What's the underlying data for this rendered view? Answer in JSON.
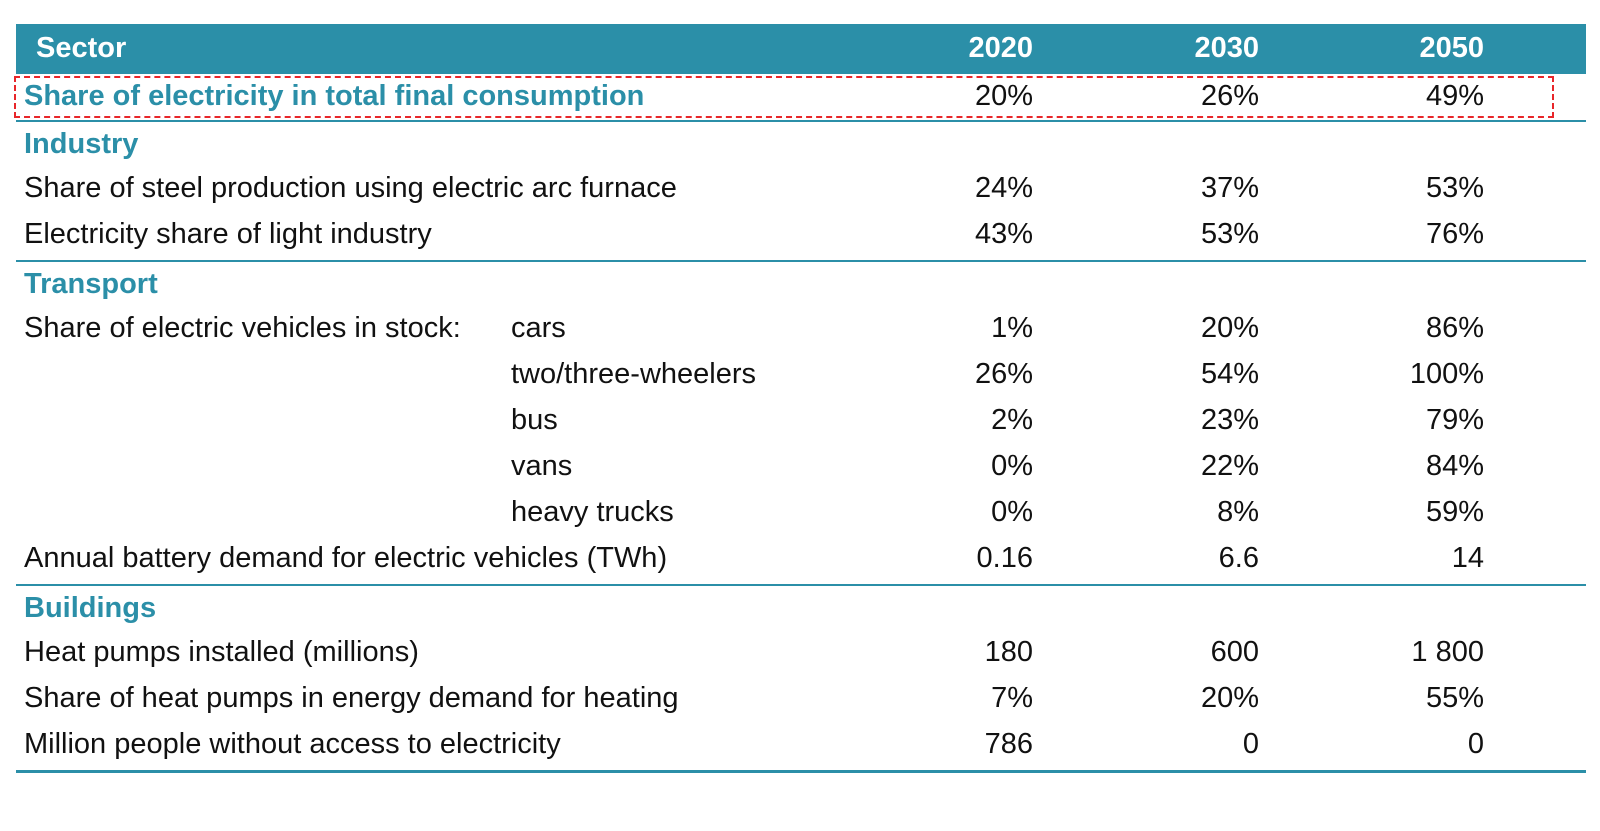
{
  "header": {
    "sector": "Sector",
    "y2020": "2020",
    "y2030": "2030",
    "y2050": "2050"
  },
  "highlight_row": {
    "label": "Share of electricity in total final consumption",
    "v2020": "20%",
    "v2030": "26%",
    "v2050": "49%"
  },
  "industry": {
    "title": "Industry",
    "rows": [
      {
        "label": "Share of steel production using electric arc furnace",
        "v2020": "24%",
        "v2030": "37%",
        "v2050": "53%"
      },
      {
        "label": "Electricity share of light industry",
        "v2020": "43%",
        "v2030": "53%",
        "v2050": "76%"
      }
    ]
  },
  "transport": {
    "title": "Transport",
    "ev_label": "Share of electric vehicles in stock:",
    "ev_rows": [
      {
        "sub": "cars",
        "v2020": "1%",
        "v2030": "20%",
        "v2050": "86%"
      },
      {
        "sub": "two/three-wheelers",
        "v2020": "26%",
        "v2030": "54%",
        "v2050": "100%"
      },
      {
        "sub": "bus",
        "v2020": "2%",
        "v2030": "23%",
        "v2050": "79%"
      },
      {
        "sub": "vans",
        "v2020": "0%",
        "v2030": "22%",
        "v2050": "84%"
      },
      {
        "sub": "heavy trucks",
        "v2020": "0%",
        "v2030": "8%",
        "v2050": "59%"
      }
    ],
    "battery": {
      "label": "Annual battery demand for electric vehicles (TWh)",
      "v2020": "0.16",
      "v2030": "6.6",
      "v2050": "14"
    }
  },
  "buildings": {
    "title": "Buildings",
    "rows": [
      {
        "label": "Heat pumps installed (millions)",
        "v2020": "180",
        "v2030": "600",
        "v2050": "1 800"
      },
      {
        "label": "Share of heat pumps in energy demand for heating",
        "v2020": "7%",
        "v2030": "20%",
        "v2050": "55%"
      },
      {
        "label": "Million people without access to electricity",
        "v2020": "786",
        "v2030": "0",
        "v2050": "0"
      }
    ]
  },
  "colors": {
    "accent": "#2b8fa8",
    "highlight_border": "#e8262a"
  }
}
